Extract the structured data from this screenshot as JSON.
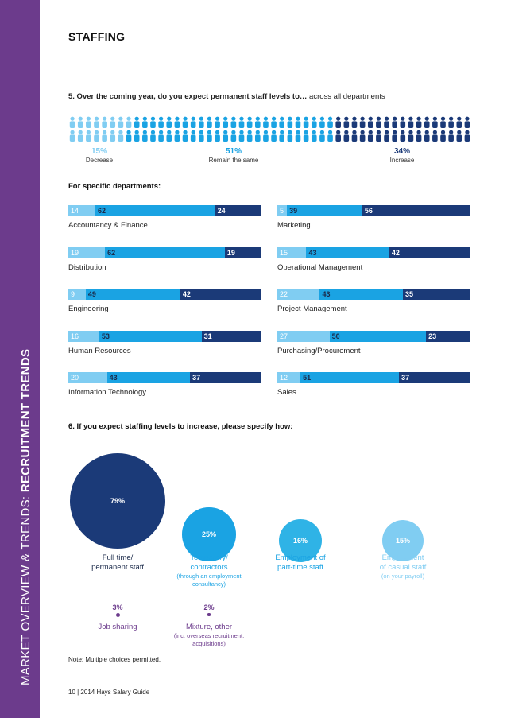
{
  "sidebar": {
    "prefix": "MARKET OVERVIEW & TRENDS: ",
    "emphasis": "RECRUITMENT TRENDS"
  },
  "section_title": "STAFFING",
  "q5": {
    "number_text": "5.  Over the coming year, do you expect permanent staff levels to…",
    "suffix": " across all departments"
  },
  "summary": [
    {
      "pct": "15%",
      "label": "Decrease",
      "color": "#80cdf2"
    },
    {
      "pct": "51%",
      "label": "Remain the same",
      "color": "#1aa3e3"
    },
    {
      "pct": "34%",
      "label": "Increase",
      "color": "#1b3a78"
    }
  ],
  "specific_heading": "For specific departments:",
  "q6": {
    "text": "6.  If you expect staffing levels to increase, please specify how:"
  },
  "note": "Note: Multiple choices permitted.",
  "footer": "10  |  2014 Hays Salary Guide",
  "chart_data": [
    {
      "type": "pictogram",
      "title": "Over the coming year, do you expect permanent staff levels to… across all departments",
      "categories": [
        "Decrease",
        "Remain the same",
        "Increase"
      ],
      "values": [
        15,
        51,
        34
      ],
      "unit": "%"
    },
    {
      "type": "bar",
      "stacked": true,
      "orientation": "horizontal",
      "title": "For specific departments:",
      "series_colors": [
        "#80cdf2",
        "#1aa3e3",
        "#1b3a78"
      ],
      "categories": [
        "Accountancy & Finance",
        "Distribution",
        "Engineering",
        "Human Resources",
        "Information Technology",
        "Marketing",
        "Operational Management",
        "Project Management",
        "Purchasing/Procurement",
        "Sales"
      ],
      "series": [
        {
          "values": [
            14,
            19,
            9,
            16,
            20,
            5,
            15,
            22,
            27,
            12
          ]
        },
        {
          "values": [
            62,
            62,
            49,
            53,
            43,
            39,
            43,
            43,
            50,
            51
          ]
        },
        {
          "values": [
            24,
            19,
            42,
            31,
            37,
            56,
            42,
            35,
            23,
            37
          ]
        }
      ],
      "ylim": [
        0,
        100
      ]
    },
    {
      "type": "bubble",
      "title": "If you expect staffing levels to increase, please specify how:",
      "items": [
        {
          "pct": "79%",
          "value": 79,
          "label1": "Full time/",
          "label2": "permanent staff",
          "note1": "",
          "note2": "",
          "color": "#1b3a78",
          "text_color": "#1b2a4a"
        },
        {
          "pct": "25%",
          "value": 25,
          "label1": "Temporary/",
          "label2": "contractors",
          "note1": "(through an employment",
          "note2": "consultancy)",
          "color": "#1aa3e3",
          "text_color": "#1aa3e3"
        },
        {
          "pct": "16%",
          "value": 16,
          "label1": "Employment of",
          "label2": "part-time staff",
          "note1": "",
          "note2": "",
          "color": "#2fb3e6",
          "text_color": "#1aa3e3"
        },
        {
          "pct": "15%",
          "value": 15,
          "label1": "Employment",
          "label2": "of casual staff",
          "note1": "(on your payroll)",
          "note2": "",
          "color": "#80cdf2",
          "text_color": "#80cdf2"
        },
        {
          "pct": "3%",
          "value": 3,
          "label1": "Job sharing",
          "label2": "",
          "note1": "",
          "note2": "",
          "color": "#6c3b8c",
          "text_color": "#6c3b8c"
        },
        {
          "pct": "2%",
          "value": 2,
          "label1": "Mixture, other",
          "label2": "",
          "note1": "(inc. overseas recruitment,",
          "note2": "acquisitions)",
          "color": "#6c3b8c",
          "text_color": "#6c3b8c"
        }
      ]
    }
  ]
}
